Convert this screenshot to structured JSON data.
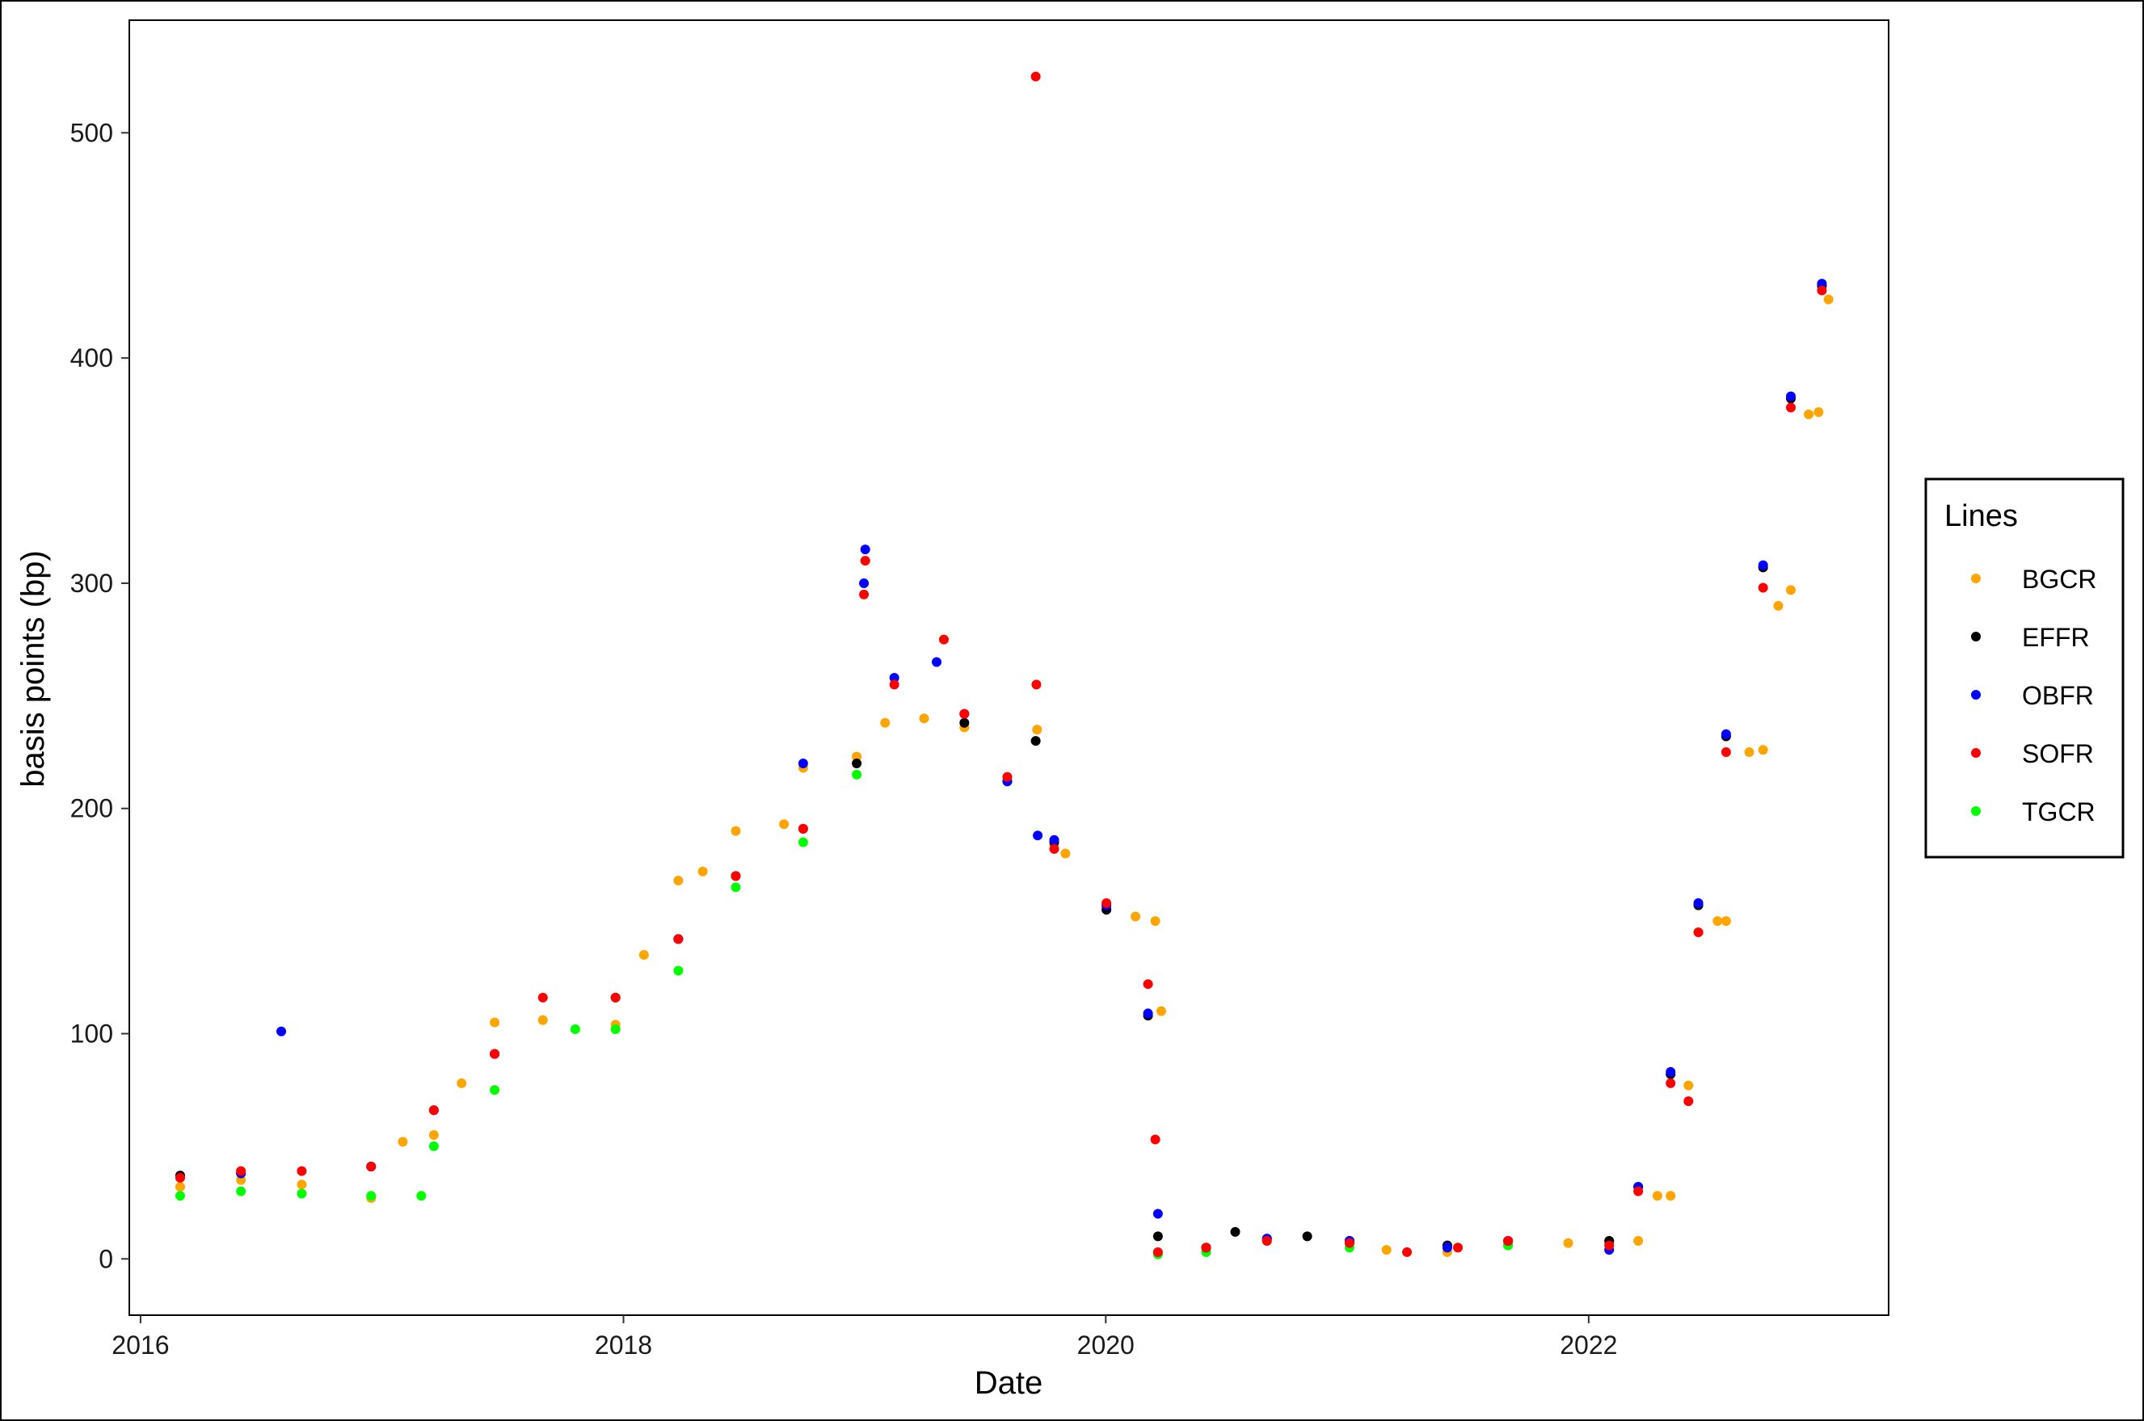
{
  "chart_data": {
    "type": "scatter",
    "title": "",
    "xlabel": "Date",
    "ylabel": "basis points (bp)",
    "xlim": [
      "2015-12-15",
      "2023-03-31"
    ],
    "ylim": [
      -25,
      550
    ],
    "x_ticks": [
      "2016-01-01",
      "2018-01-01",
      "2020-01-01",
      "2022-01-01"
    ],
    "x_tick_labels": [
      "2016",
      "2018",
      "2020",
      "2022"
    ],
    "y_ticks": [
      0,
      100,
      200,
      300,
      400,
      500
    ],
    "y_tick_labels": [
      "0",
      "100",
      "200",
      "300",
      "400",
      "500"
    ],
    "grid": false,
    "legend": {
      "title": "Lines",
      "position": "right",
      "entries": [
        "BGCR",
        "EFFR",
        "OBFR",
        "SOFR",
        "TGCR"
      ]
    },
    "series": [
      {
        "name": "BGCR",
        "color": "#FFA500",
        "x": [
          "2016-03-01",
          "2016-06-01",
          "2016-09-01",
          "2016-12-15",
          "2017-02-01",
          "2017-03-20",
          "2017-05-01",
          "2017-06-20",
          "2017-09-01",
          "2017-12-20",
          "2018-02-01",
          "2018-03-25",
          "2018-05-01",
          "2018-06-20",
          "2018-09-01",
          "2018-09-30",
          "2018-12-20",
          "2019-02-01",
          "2019-04-01",
          "2019-06-01",
          "2019-08-05",
          "2019-09-19",
          "2019-10-15",
          "2019-11-01",
          "2020-01-02",
          "2020-02-15",
          "2020-03-16",
          "2020-03-25",
          "2020-06-01",
          "2020-09-01",
          "2021-01-04",
          "2021-03-01",
          "2021-06-01",
          "2021-06-17",
          "2021-09-01",
          "2021-12-01",
          "2022-02-01",
          "2022-03-17",
          "2022-04-15",
          "2022-05-05",
          "2022-06-01",
          "2022-06-16",
          "2022-07-15",
          "2022-07-28",
          "2022-09-01",
          "2022-09-22",
          "2022-10-15",
          "2022-11-03",
          "2022-11-30",
          "2022-12-15",
          "2022-12-30"
        ],
        "y": [
          32,
          35,
          33,
          27,
          52,
          55,
          78,
          105,
          106,
          104,
          135,
          168,
          172,
          190,
          193,
          218,
          223,
          238,
          240,
          236,
          214,
          235,
          184,
          180,
          156,
          152,
          150,
          110,
          3,
          8,
          7,
          4,
          3,
          5,
          6,
          7,
          7,
          8,
          28,
          28,
          77,
          145,
          150,
          150,
          225,
          226,
          290,
          297,
          375,
          376,
          426
        ]
      },
      {
        "name": "EFFR",
        "color": "#000000",
        "x": [
          "2016-03-01",
          "2016-06-01",
          "2016-12-15",
          "2017-03-20",
          "2017-06-20",
          "2017-12-20",
          "2018-03-25",
          "2018-06-20",
          "2018-09-30",
          "2018-12-20",
          "2019-06-01",
          "2019-08-05",
          "2019-09-17",
          "2019-10-15",
          "2020-01-02",
          "2020-03-05",
          "2020-03-20",
          "2020-06-01",
          "2020-07-15",
          "2020-09-01",
          "2020-11-01",
          "2021-01-04",
          "2021-06-01",
          "2021-09-01",
          "2022-02-01",
          "2022-03-17",
          "2022-05-05",
          "2022-06-16",
          "2022-07-28",
          "2022-09-22",
          "2022-11-03",
          "2022-12-20"
        ],
        "y": [
          37,
          38,
          41,
          66,
          91,
          116,
          142,
          170,
          191,
          220,
          238,
          212,
          230,
          185,
          155,
          108,
          10,
          5,
          12,
          9,
          10,
          8,
          6,
          8,
          8,
          32,
          82,
          157,
          232,
          307,
          382,
          432
        ]
      },
      {
        "name": "OBFR",
        "color": "#0000FF",
        "x": [
          "2016-06-01",
          "2016-08-01",
          "2016-12-15",
          "2017-06-20",
          "2018-03-25",
          "2018-09-30",
          "2018-12-31",
          "2019-01-02",
          "2019-02-15",
          "2019-04-20",
          "2019-06-01",
          "2019-08-05",
          "2019-09-20",
          "2019-10-15",
          "2020-01-02",
          "2020-03-05",
          "2020-03-20",
          "2020-06-01",
          "2020-09-01",
          "2021-01-04",
          "2021-06-01",
          "2021-09-01",
          "2022-02-01",
          "2022-03-17",
          "2022-05-05",
          "2022-06-16",
          "2022-07-28",
          "2022-09-22",
          "2022-11-03",
          "2022-12-20"
        ],
        "y": [
          38,
          101,
          41,
          91,
          142,
          220,
          300,
          315,
          258,
          265,
          242,
          212,
          188,
          186,
          157,
          109,
          20,
          5,
          9,
          8,
          5,
          8,
          4,
          32,
          83,
          158,
          233,
          308,
          383,
          433
        ]
      },
      {
        "name": "SOFR",
        "color": "#FF0000",
        "x": [
          "2016-03-01",
          "2016-06-01",
          "2016-09-01",
          "2016-12-15",
          "2017-03-20",
          "2017-06-20",
          "2017-09-01",
          "2017-12-20",
          "2018-03-25",
          "2018-06-20",
          "2018-09-30",
          "2018-12-31",
          "2019-01-02",
          "2019-02-15",
          "2019-05-01",
          "2019-06-01",
          "2019-08-05",
          "2019-09-17",
          "2019-09-18",
          "2019-10-15",
          "2020-01-02",
          "2020-03-05",
          "2020-03-16",
          "2020-03-20",
          "2020-06-01",
          "2020-09-01",
          "2021-01-04",
          "2021-04-01",
          "2021-06-17",
          "2021-09-01",
          "2022-02-01",
          "2022-03-17",
          "2022-05-05",
          "2022-06-01",
          "2022-06-16",
          "2022-07-28",
          "2022-09-22",
          "2022-11-03",
          "2022-12-20"
        ],
        "y": [
          36,
          39,
          39,
          41,
          66,
          91,
          116,
          116,
          142,
          170,
          191,
          295,
          310,
          255,
          275,
          242,
          214,
          525,
          255,
          182,
          158,
          122,
          53,
          3,
          5,
          8,
          7,
          3,
          5,
          8,
          6,
          30,
          78,
          70,
          145,
          225,
          298,
          378,
          430
        ]
      },
      {
        "name": "TGCR",
        "color": "#00FF00",
        "x": [
          "2016-03-01",
          "2016-06-01",
          "2016-09-01",
          "2016-12-15",
          "2017-03-01",
          "2017-03-20",
          "2017-06-20",
          "2017-10-20",
          "2017-12-20",
          "2018-03-25",
          "2018-06-20",
          "2018-09-30",
          "2018-12-20",
          "2020-03-20",
          "2020-06-01",
          "2021-01-04",
          "2021-06-01",
          "2021-09-01",
          "2022-02-01",
          "2022-03-17"
        ],
        "y": [
          28,
          30,
          29,
          28,
          28,
          50,
          75,
          102,
          102,
          128,
          165,
          185,
          215,
          2,
          3,
          5,
          5,
          6,
          8,
          32
        ]
      }
    ]
  }
}
